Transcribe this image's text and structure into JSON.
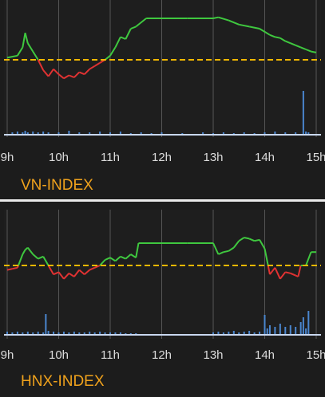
{
  "colors": {
    "up": "#3fc83f",
    "down": "#e03232",
    "reference": "#f5b800",
    "volume": "#4a86cf",
    "title": "#f0a21c",
    "grid": "#555555"
  },
  "panels": [
    {
      "id": "vn",
      "title": "VN-INDEX"
    },
    {
      "id": "hnx",
      "title": "HNX-INDEX"
    }
  ],
  "chart_data": [
    {
      "type": "line",
      "title": "VN-INDEX",
      "categories": [
        "9h",
        "10h",
        "11h",
        "12h",
        "13h",
        "14h",
        "15h"
      ],
      "x_range": [
        9,
        15
      ],
      "y_range": [
        0,
        100
      ],
      "reference": 50,
      "price": {
        "x": [
          9.0,
          9.2,
          9.3,
          9.35,
          9.4,
          9.5,
          9.6,
          9.7,
          9.8,
          9.9,
          10.0,
          10.1,
          10.2,
          10.3,
          10.4,
          10.5,
          10.6,
          10.7,
          10.8,
          10.9,
          11.0,
          11.1,
          11.2,
          11.3,
          11.4,
          11.5,
          11.7,
          12.0,
          12.5,
          13.0,
          13.1,
          13.3,
          13.5,
          13.7,
          13.9,
          14.0,
          14.1,
          14.2,
          14.3,
          14.4,
          14.5,
          14.6,
          14.7,
          14.8,
          14.9,
          15.0
        ],
        "y": [
          52,
          54,
          62,
          76,
          66,
          58,
          50,
          40,
          34,
          41,
          36,
          32,
          35,
          33,
          38,
          36,
          41,
          44,
          47,
          50,
          54,
          62,
          72,
          70,
          80,
          82,
          90,
          90,
          90,
          90,
          91,
          88,
          84,
          82,
          80,
          77,
          74,
          72,
          71,
          68,
          66,
          64,
          62,
          60,
          58,
          57
        ]
      },
      "volume": {
        "x": [
          9.1,
          9.2,
          9.3,
          9.35,
          9.4,
          9.5,
          9.6,
          9.7,
          9.8,
          10.0,
          10.2,
          10.4,
          10.6,
          10.8,
          11.0,
          11.2,
          11.4,
          11.6,
          11.8,
          12.0,
          12.4,
          12.8,
          13.0,
          13.2,
          13.4,
          13.6,
          13.8,
          14.0,
          14.2,
          14.4,
          14.6,
          14.75,
          14.8,
          14.85
        ],
        "y": [
          3,
          4,
          3,
          5,
          3,
          4,
          3,
          4,
          3,
          3,
          5,
          3,
          3,
          4,
          3,
          4,
          2,
          3,
          2,
          3,
          2,
          3,
          2,
          3,
          2,
          3,
          2,
          3,
          4,
          3,
          3,
          55,
          4,
          3
        ]
      }
    },
    {
      "type": "line",
      "title": "HNX-INDEX",
      "categories": [
        "9h",
        "10h",
        "11h",
        "12h",
        "13h",
        "14h",
        "15h"
      ],
      "x_range": [
        9,
        15
      ],
      "y_range": [
        0,
        100
      ],
      "reference": 50,
      "price": {
        "x": [
          9.0,
          9.1,
          9.2,
          9.3,
          9.35,
          9.4,
          9.5,
          9.6,
          9.7,
          9.8,
          9.9,
          10.0,
          10.1,
          10.2,
          10.3,
          10.4,
          10.5,
          10.6,
          10.7,
          10.8,
          10.9,
          11.0,
          11.1,
          11.2,
          11.3,
          11.4,
          11.5,
          11.55,
          12.0,
          12.5,
          12.9,
          13.0,
          13.1,
          13.2,
          13.3,
          13.4,
          13.5,
          13.6,
          13.7,
          13.8,
          13.9,
          14.0,
          14.1,
          14.2,
          14.3,
          14.4,
          14.5,
          14.6,
          14.65,
          14.7,
          14.8,
          14.9,
          15.0
        ],
        "y": [
          46,
          47,
          48,
          60,
          64,
          66,
          60,
          56,
          58,
          50,
          42,
          44,
          38,
          43,
          40,
          46,
          42,
          46,
          48,
          50,
          55,
          57,
          54,
          58,
          56,
          60,
          57,
          70,
          70,
          70,
          70,
          70,
          60,
          62,
          63,
          66,
          72,
          75,
          74,
          72,
          73,
          65,
          42,
          48,
          38,
          44,
          43,
          41,
          40,
          50,
          50,
          62,
          62
        ]
      },
      "volume": {
        "x": [
          9.0,
          9.1,
          9.2,
          9.3,
          9.4,
          9.5,
          9.6,
          9.7,
          9.75,
          9.8,
          9.9,
          10.0,
          10.1,
          10.2,
          10.3,
          10.4,
          10.5,
          10.6,
          10.7,
          10.8,
          10.9,
          11.0,
          11.1,
          11.2,
          11.3,
          11.4,
          11.5,
          13.0,
          13.1,
          13.2,
          13.3,
          13.4,
          13.5,
          13.6,
          13.7,
          13.8,
          13.9,
          14.0,
          14.05,
          14.1,
          14.2,
          14.3,
          14.4,
          14.5,
          14.6,
          14.7,
          14.75,
          14.8,
          14.85
        ],
        "y": [
          4,
          3,
          4,
          3,
          4,
          3,
          4,
          3,
          26,
          5,
          4,
          3,
          4,
          3,
          4,
          3,
          3,
          4,
          3,
          4,
          3,
          3,
          3,
          3,
          2,
          2,
          2,
          3,
          4,
          3,
          4,
          5,
          3,
          4,
          5,
          3,
          4,
          25,
          8,
          12,
          10,
          14,
          10,
          12,
          10,
          16,
          22,
          8,
          30
        ]
      }
    }
  ]
}
